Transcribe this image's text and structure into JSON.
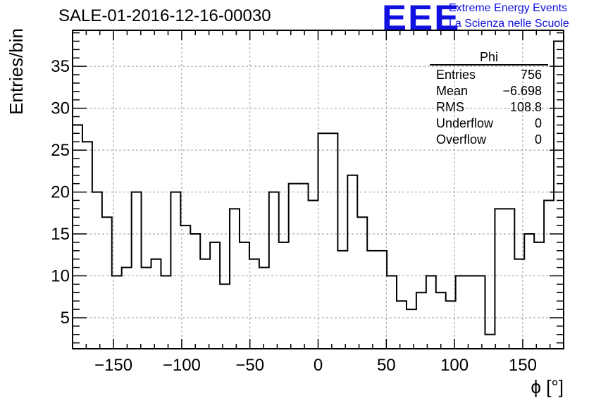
{
  "header": {
    "title": "SALE-01-2016-12-16-00030",
    "logo_text": "EEE",
    "logo_line1": "Extreme Energy Events",
    "logo_line2": "La Scienza nelle Scuole"
  },
  "colors": {
    "logo": "#1010e0",
    "line": "#000000",
    "grid": "#9a9a9a"
  },
  "stats": {
    "title": "Phi",
    "rows": [
      {
        "label": "Entries",
        "value": "756"
      },
      {
        "label": "Mean",
        "value": "−6.698"
      },
      {
        "label": "RMS",
        "value": "108.8"
      },
      {
        "label": "Underflow",
        "value": "0"
      },
      {
        "label": "Overflow",
        "value": "0"
      }
    ]
  },
  "chart_data": {
    "type": "histogram",
    "title": "SALE-01-2016-12-16-00030",
    "xlabel": "ϕ [°]",
    "ylabel": "Entries/bin",
    "xlim": [
      -180,
      180
    ],
    "ylim": [
      1.3,
      39.3
    ],
    "bin_width": 7.2,
    "x_ticks": [
      -150,
      -100,
      -50,
      0,
      50,
      100,
      150
    ],
    "x_tick_labels": [
      "−150",
      "−100",
      "−50",
      "0",
      "50",
      "100",
      "150"
    ],
    "y_ticks": [
      5,
      10,
      15,
      20,
      25,
      30,
      35
    ],
    "y_tick_labels": [
      "5",
      "10",
      "15",
      "20",
      "25",
      "30",
      "35"
    ],
    "grid": true,
    "values": [
      28,
      26,
      20,
      17,
      10,
      11,
      20,
      11,
      12,
      10,
      20,
      16,
      15,
      12,
      14,
      9,
      18,
      14,
      12,
      11,
      20,
      14,
      21,
      21,
      19,
      27,
      27,
      13,
      22,
      17,
      13,
      13,
      10,
      7,
      6,
      8,
      10,
      8,
      7,
      10,
      10,
      10,
      3,
      18,
      18,
      12,
      15,
      14,
      19,
      38
    ]
  }
}
